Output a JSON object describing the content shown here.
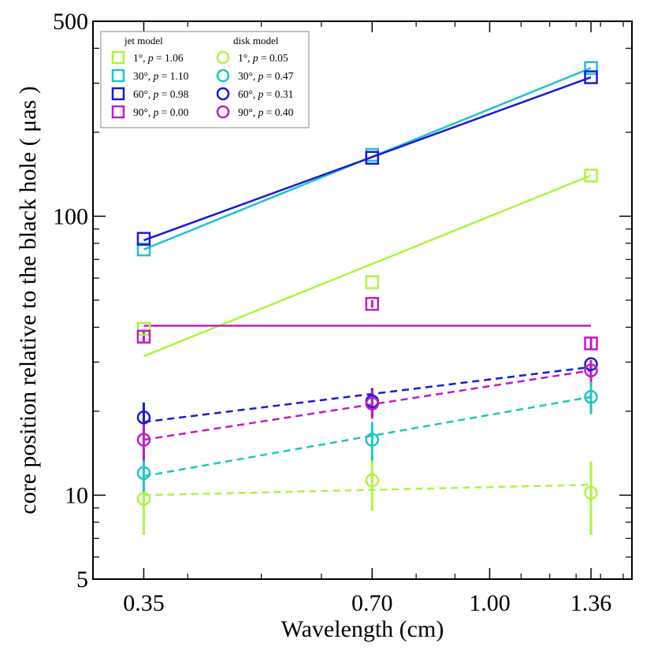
{
  "chart_data": {
    "type": "scatter",
    "xlabel": "Wavelength (cm)",
    "ylabel": "core position relative to the black hole ( μas )",
    "x_scale": "log",
    "y_scale": "log",
    "xlim": [
      0.3,
      1.54
    ],
    "ylim": [
      5,
      500
    ],
    "x_ticks": [
      {
        "value": 0.35,
        "label": "0.35"
      },
      {
        "value": 0.7,
        "label": "0.70"
      },
      {
        "value": 1.0,
        "label": "1.00"
      },
      {
        "value": 1.36,
        "label": "1.36"
      }
    ],
    "y_ticks": [
      {
        "value": 5,
        "label": "5"
      },
      {
        "value": 10,
        "label": "10"
      },
      {
        "value": 100,
        "label": "100"
      },
      {
        "value": 500,
        "label": "500"
      }
    ],
    "legend": {
      "placement": "top-left",
      "jet_header": "jet model",
      "disk_header": "disk model"
    },
    "series": [
      {
        "name": "1°, p=1.06",
        "angle": "1°",
        "p_label": "p",
        "p_value": "1.06",
        "model": "jet",
        "color": "#adf542",
        "x": [
          0.35,
          0.7,
          1.36
        ],
        "y": [
          39.5,
          58,
          140
        ],
        "yerr": [
          0,
          0,
          0
        ],
        "fit": {
          "x": [
            0.35,
            1.36
          ],
          "y": [
            31.5,
            140
          ]
        }
      },
      {
        "name": "30°, p=1.10",
        "angle": "30°",
        "p_label": "p",
        "p_value": "1.10",
        "model": "jet",
        "color": "#1fc4c4",
        "x": [
          0.35,
          0.7,
          1.36
        ],
        "y": [
          76,
          166,
          340
        ],
        "yerr": [
          0,
          0,
          0
        ],
        "fit": {
          "x": [
            0.35,
            1.36
          ],
          "y": [
            76,
            340
          ]
        }
      },
      {
        "name": "60°, p=0.98",
        "angle": "60°",
        "p_label": "p",
        "p_value": "0.98",
        "model": "jet",
        "color": "#1a1ad4",
        "x": [
          0.35,
          0.7,
          1.36
        ],
        "y": [
          83,
          162,
          315
        ],
        "yerr": [
          0,
          0,
          0
        ],
        "fit": {
          "x": [
            0.35,
            1.36
          ],
          "y": [
            82,
            315
          ]
        }
      },
      {
        "name": "90°, p=0.00",
        "angle": "90°",
        "p_label": "p",
        "p_value": "0.00",
        "model": "jet",
        "color": "#c31ac3",
        "x": [
          0.35,
          0.7,
          1.36
        ],
        "y": [
          37,
          48.5,
          35
        ],
        "yerr": [
          1.5,
          1.5,
          1.5
        ],
        "fit": {
          "x": [
            0.35,
            1.36
          ],
          "y": [
            40.5,
            40.5
          ]
        }
      },
      {
        "name": "1°, p=0.05",
        "angle": "1°",
        "p_label": "p",
        "p_value": "0.05",
        "model": "disk",
        "color": "#adf542",
        "x": [
          0.35,
          0.7,
          1.36
        ],
        "y": [
          9.7,
          11.3,
          10.2
        ],
        "yerr": [
          2.5,
          2.5,
          3.0
        ],
        "fit": {
          "x": [
            0.35,
            1.36
          ],
          "y": [
            10.0,
            10.9
          ]
        }
      },
      {
        "name": "30°, p=0.47",
        "angle": "30°",
        "p_label": "p",
        "p_value": "0.47",
        "model": "disk",
        "color": "#1fc4c4",
        "x": [
          0.35,
          0.7,
          1.36
        ],
        "y": [
          12.0,
          15.8,
          22.5
        ],
        "yerr": [
          1.8,
          2.5,
          3.0
        ],
        "fit": {
          "x": [
            0.35,
            1.36
          ],
          "y": [
            11.7,
            22.5
          ]
        }
      },
      {
        "name": "60°, p=0.31",
        "angle": "60°",
        "p_label": "p",
        "p_value": "0.31",
        "model": "disk",
        "color": "#1a1ad4",
        "x": [
          0.35,
          0.7,
          1.36
        ],
        "y": [
          19.0,
          21.7,
          29.5
        ],
        "yerr": [
          2.5,
          2.5,
          0
        ],
        "fit": {
          "x": [
            0.35,
            1.36
          ],
          "y": [
            18.3,
            28.8
          ]
        }
      },
      {
        "name": "90°, p=0.40",
        "angle": "90°",
        "p_label": "p",
        "p_value": "0.40",
        "model": "disk",
        "color": "#c31ac3",
        "x": [
          0.35,
          0.7,
          1.36
        ],
        "y": [
          15.8,
          21.3,
          28.0
        ],
        "yerr": [
          2.5,
          2.5,
          2.5
        ],
        "fit": {
          "x": [
            0.35,
            1.36
          ],
          "y": [
            15.8,
            28.0
          ]
        }
      }
    ]
  }
}
